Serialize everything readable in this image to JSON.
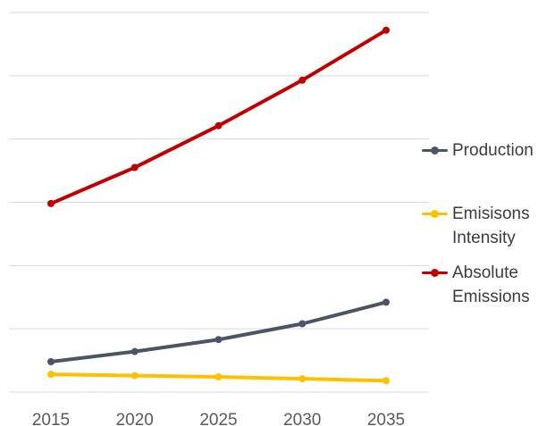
{
  "chart_data": {
    "type": "line",
    "title": "",
    "xlabel": "",
    "ylabel": "",
    "x": [
      "2015",
      "2020",
      "2025",
      "2030",
      "2035"
    ],
    "ylim": [
      0,
      6
    ],
    "y_ticks": [
      0,
      1,
      2,
      3,
      4,
      5,
      6
    ],
    "y_tick_labels_visible": false,
    "grid": "horizontal",
    "legend_position": "right",
    "series": [
      {
        "name": "Production",
        "color": "#4b5565",
        "values": [
          0.48,
          0.64,
          0.83,
          1.08,
          1.42
        ]
      },
      {
        "name": "Emisisons Intensity",
        "color": "#ffc000",
        "values": [
          0.28,
          0.26,
          0.24,
          0.21,
          0.18
        ]
      },
      {
        "name": "Absolute Emissions",
        "color": "#c00000",
        "values": [
          2.98,
          3.55,
          4.21,
          4.93,
          5.72
        ]
      }
    ]
  },
  "legend": {
    "items": [
      {
        "label": "Production",
        "color": "#4b5565"
      },
      {
        "label": "Emisisons Intensity",
        "color": "#ffc000"
      },
      {
        "label": "Absolute Emissions",
        "color": "#c00000"
      }
    ]
  },
  "style": {
    "gridline_color": "#d9d9d9",
    "tick_label_color": "#595959"
  }
}
